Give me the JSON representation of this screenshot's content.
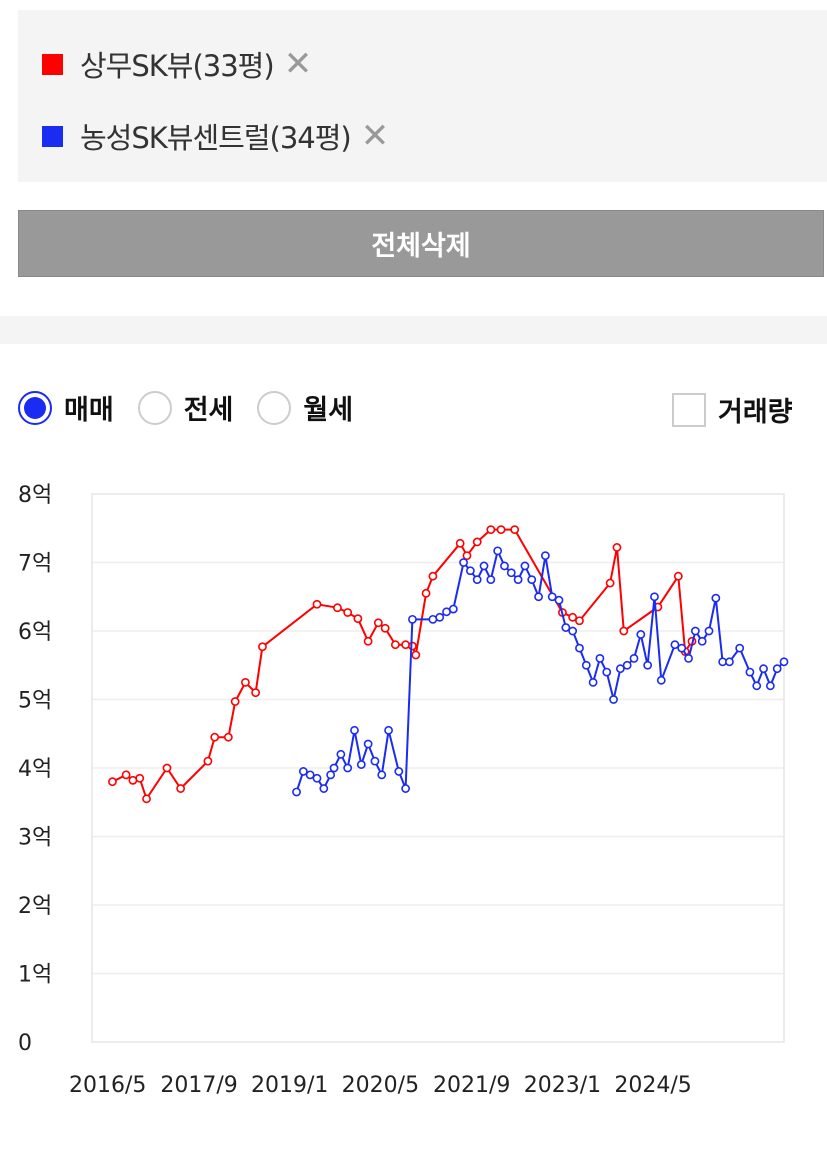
{
  "legend": {
    "items": [
      {
        "label": "상무SK뷰(33평)",
        "color": "#ff0000",
        "close": "✕"
      },
      {
        "label": "농성SK뷰센트럴(34평)",
        "color": "#1a2cf2",
        "close": "✕"
      }
    ]
  },
  "clear_all_label": "전체삭제",
  "trade_types": [
    {
      "label": "매매",
      "selected": true
    },
    {
      "label": "전세",
      "selected": false
    },
    {
      "label": "월세",
      "selected": false
    }
  ],
  "volume_label": "거래량",
  "chart_data": {
    "type": "line",
    "title": "",
    "xlabel": "",
    "ylabel": "",
    "ylim": [
      0,
      8
    ],
    "yticks": [
      {
        "v": 0,
        "label": "0"
      },
      {
        "v": 1,
        "label": "1억"
      },
      {
        "v": 2,
        "label": "2억"
      },
      {
        "v": 3,
        "label": "3억"
      },
      {
        "v": 4,
        "label": "4억"
      },
      {
        "v": 5,
        "label": "5억"
      },
      {
        "v": 6,
        "label": "6억"
      },
      {
        "v": 7,
        "label": "7억"
      },
      {
        "v": 8,
        "label": "8억"
      }
    ],
    "xlim": [
      2016.1,
      2026.25
    ],
    "xticks": [
      {
        "v": 2016.33,
        "label": "2016/5"
      },
      {
        "v": 2017.67,
        "label": "2017/9"
      },
      {
        "v": 2019.0,
        "label": "2019/1"
      },
      {
        "v": 2020.33,
        "label": "2020/5"
      },
      {
        "v": 2021.67,
        "label": "2021/9"
      },
      {
        "v": 2023.0,
        "label": "2023/1"
      },
      {
        "v": 2024.33,
        "label": "2024/5"
      }
    ],
    "grid": true,
    "series": [
      {
        "name": "상무SK뷰(33평)",
        "color": "#ff0000",
        "points": [
          [
            2016.4,
            3.8
          ],
          [
            2016.6,
            3.9
          ],
          [
            2016.7,
            3.82
          ],
          [
            2016.8,
            3.85
          ],
          [
            2016.9,
            3.55
          ],
          [
            2017.2,
            4.0
          ],
          [
            2017.4,
            3.7
          ],
          [
            2017.8,
            4.1
          ],
          [
            2017.9,
            4.45
          ],
          [
            2018.1,
            4.45
          ],
          [
            2018.2,
            4.97
          ],
          [
            2018.35,
            5.25
          ],
          [
            2018.5,
            5.1
          ],
          [
            2018.6,
            5.77
          ],
          [
            2019.4,
            6.39
          ],
          [
            2019.7,
            6.34
          ],
          [
            2019.85,
            6.27
          ],
          [
            2020.0,
            6.18
          ],
          [
            2020.15,
            5.85
          ],
          [
            2020.3,
            6.12
          ],
          [
            2020.4,
            6.04
          ],
          [
            2020.55,
            5.8
          ],
          [
            2020.7,
            5.8
          ],
          [
            2020.8,
            5.78
          ],
          [
            2020.85,
            5.65
          ],
          [
            2021.0,
            6.55
          ],
          [
            2021.1,
            6.8
          ],
          [
            2021.5,
            7.28
          ],
          [
            2021.6,
            7.1
          ],
          [
            2021.75,
            7.3
          ],
          [
            2021.95,
            7.48
          ],
          [
            2022.1,
            7.48
          ],
          [
            2022.3,
            7.48
          ],
          [
            2023.0,
            6.27
          ],
          [
            2023.15,
            6.2
          ],
          [
            2023.25,
            6.15
          ],
          [
            2023.7,
            6.7
          ],
          [
            2023.8,
            7.22
          ],
          [
            2023.9,
            6.0
          ],
          [
            2024.4,
            6.35
          ],
          [
            2024.7,
            6.8
          ],
          [
            2024.8,
            5.7
          ],
          [
            2024.9,
            5.85
          ]
        ]
      },
      {
        "name": "농성SK뷰센트럴(34평)",
        "color": "#1a2cf2",
        "points": [
          [
            2019.1,
            3.65
          ],
          [
            2019.2,
            3.95
          ],
          [
            2019.3,
            3.9
          ],
          [
            2019.4,
            3.85
          ],
          [
            2019.5,
            3.7
          ],
          [
            2019.6,
            3.9
          ],
          [
            2019.65,
            4.0
          ],
          [
            2019.75,
            4.2
          ],
          [
            2019.85,
            4.0
          ],
          [
            2019.95,
            4.55
          ],
          [
            2020.05,
            4.05
          ],
          [
            2020.15,
            4.35
          ],
          [
            2020.25,
            4.1
          ],
          [
            2020.35,
            3.9
          ],
          [
            2020.45,
            4.55
          ],
          [
            2020.6,
            3.95
          ],
          [
            2020.7,
            3.7
          ],
          [
            2020.8,
            6.17
          ],
          [
            2021.1,
            6.17
          ],
          [
            2021.2,
            6.2
          ],
          [
            2021.3,
            6.28
          ],
          [
            2021.4,
            6.32
          ],
          [
            2021.55,
            7.0
          ],
          [
            2021.65,
            6.88
          ],
          [
            2021.75,
            6.75
          ],
          [
            2021.85,
            6.95
          ],
          [
            2021.95,
            6.75
          ],
          [
            2022.05,
            7.17
          ],
          [
            2022.15,
            6.95
          ],
          [
            2022.25,
            6.85
          ],
          [
            2022.35,
            6.75
          ],
          [
            2022.45,
            6.95
          ],
          [
            2022.55,
            6.75
          ],
          [
            2022.65,
            6.5
          ],
          [
            2022.75,
            7.1
          ],
          [
            2022.85,
            6.5
          ],
          [
            2022.95,
            6.45
          ],
          [
            2023.05,
            6.05
          ],
          [
            2023.15,
            6.0
          ],
          [
            2023.25,
            5.75
          ],
          [
            2023.35,
            5.5
          ],
          [
            2023.45,
            5.25
          ],
          [
            2023.55,
            5.6
          ],
          [
            2023.65,
            5.4
          ],
          [
            2023.75,
            5.0
          ],
          [
            2023.85,
            5.45
          ],
          [
            2023.95,
            5.5
          ],
          [
            2024.05,
            5.6
          ],
          [
            2024.15,
            5.95
          ],
          [
            2024.25,
            5.5
          ],
          [
            2024.35,
            6.5
          ],
          [
            2024.45,
            5.28
          ],
          [
            2024.65,
            5.8
          ],
          [
            2024.75,
            5.75
          ],
          [
            2024.85,
            5.6
          ],
          [
            2024.95,
            6.0
          ],
          [
            2025.05,
            5.85
          ],
          [
            2025.15,
            6.0
          ],
          [
            2025.25,
            6.48
          ],
          [
            2025.35,
            5.55
          ],
          [
            2025.45,
            5.55
          ],
          [
            2025.6,
            5.75
          ],
          [
            2025.75,
            5.4
          ],
          [
            2025.85,
            5.2
          ],
          [
            2025.95,
            5.45
          ],
          [
            2026.05,
            5.2
          ],
          [
            2026.15,
            5.45
          ],
          [
            2026.25,
            5.55
          ]
        ]
      }
    ]
  }
}
